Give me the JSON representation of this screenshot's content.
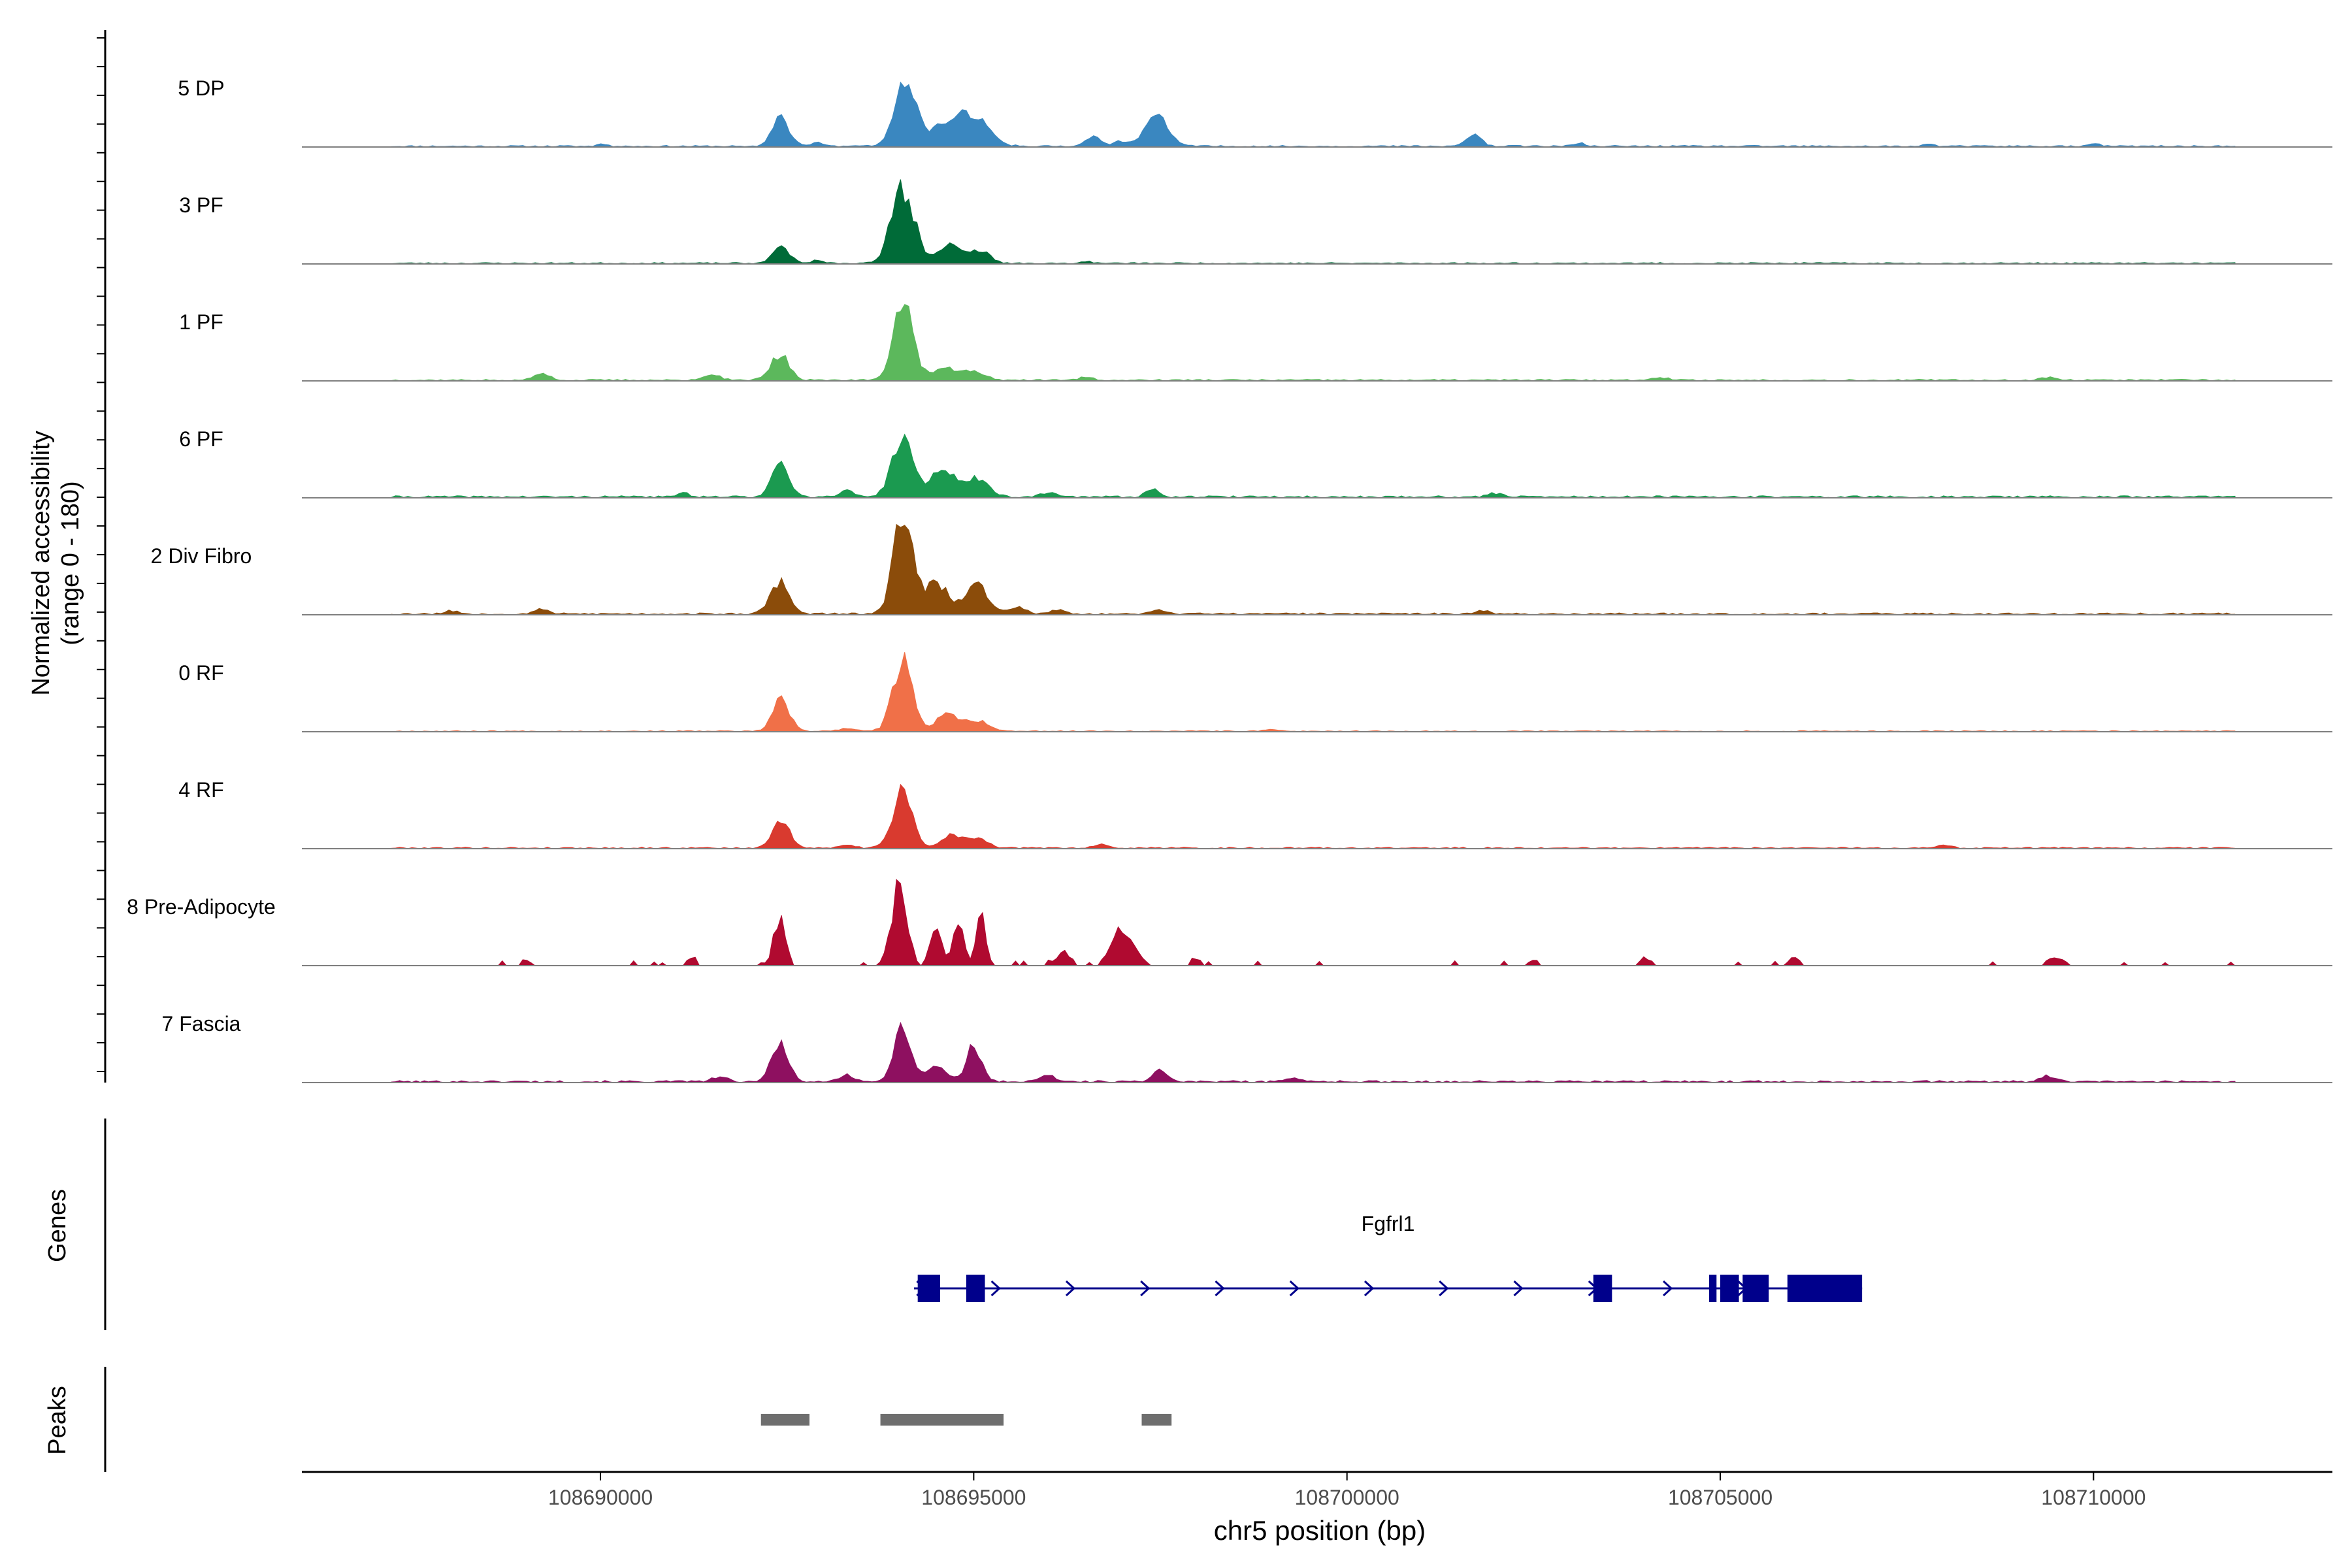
{
  "chart_data": {
    "type": "area",
    "title": "",
    "xlabel": "chr5 position (bp)",
    "ylabel": "Normalized accessibility",
    "ylabel_range": "(range 0 - 180)",
    "ylim": [
      0,
      180
    ],
    "xlim": [
      108686000,
      108713200
    ],
    "x_ticks": [
      108690000,
      108695000,
      108700000,
      108705000,
      108710000
    ],
    "x_tick_labels": [
      "108690000",
      "108695000",
      "108700000",
      "108705000",
      "108710000"
    ],
    "coverage_start": 108687200,
    "coverage_end": 108711900,
    "tracks": [
      {
        "name": "5 DP",
        "color": "#3a87c0",
        "peaks": [
          [
            108692420,
            45,
            110
          ],
          [
            108694100,
            95,
            150
          ],
          [
            108694600,
            35,
            130
          ],
          [
            108695050,
            38,
            180
          ],
          [
            108694850,
            28,
            100
          ],
          [
            108696600,
            16,
            90
          ],
          [
            108697450,
            45,
            160
          ],
          [
            108696950,
            8,
            80
          ],
          [
            108701700,
            16,
            110
          ],
          [
            108692900,
            6,
            80
          ],
          [
            108690000,
            4,
            60
          ],
          [
            108703100,
            5,
            70
          ],
          [
            108707800,
            4,
            70
          ],
          [
            108710000,
            4,
            70
          ]
        ],
        "noise": 2.5,
        "seed": 11
      },
      {
        "name": "3 PF",
        "color": "#006b38",
        "peaks": [
          [
            108692420,
            26,
            110
          ],
          [
            108694050,
            115,
            150
          ],
          [
            108694650,
            30,
            140
          ],
          [
            108695050,
            20,
            150
          ],
          [
            108692900,
            4,
            80
          ],
          [
            108696500,
            3,
            80
          ]
        ],
        "noise": 2.2,
        "seed": 23
      },
      {
        "name": "1 PF",
        "color": "#5cb85c",
        "peaks": [
          [
            108692400,
            40,
            120
          ],
          [
            108694050,
            120,
            130
          ],
          [
            108694600,
            20,
            160
          ],
          [
            108695000,
            15,
            130
          ],
          [
            108689200,
            10,
            110
          ],
          [
            108691500,
            8,
            100
          ],
          [
            108696500,
            5,
            90
          ],
          [
            108704200,
            5,
            90
          ],
          [
            108709400,
            5,
            90
          ]
        ],
        "noise": 2.5,
        "seed": 37
      },
      {
        "name": "6 PF",
        "color": "#1b9a50",
        "peaks": [
          [
            108692420,
            55,
            110
          ],
          [
            108694050,
            95,
            140
          ],
          [
            108694600,
            40,
            170
          ],
          [
            108695050,
            26,
            150
          ],
          [
            108697400,
            12,
            90
          ],
          [
            108693300,
            10,
            90
          ],
          [
            108691100,
            7,
            90
          ],
          [
            108696000,
            6,
            100
          ],
          [
            108702000,
            6,
            100
          ]
        ],
        "noise": 3.2,
        "seed": 41
      },
      {
        "name": "2 Div Fibro",
        "color": "#8b4c0a",
        "peaks": [
          [
            108692400,
            50,
            120
          ],
          [
            108694050,
            140,
            130
          ],
          [
            108694500,
            45,
            170
          ],
          [
            108695050,
            42,
            150
          ],
          [
            108695600,
            10,
            100
          ],
          [
            108696100,
            6,
            100
          ],
          [
            108689200,
            8,
            90
          ],
          [
            108688000,
            5,
            90
          ],
          [
            108697500,
            6,
            100
          ],
          [
            108701800,
            5,
            100
          ]
        ],
        "noise": 3.0,
        "seed": 53
      },
      {
        "name": "0 RF",
        "color": "#f07048",
        "peaks": [
          [
            108692420,
            50,
            110
          ],
          [
            108694050,
            105,
            130
          ],
          [
            108694650,
            25,
            150
          ],
          [
            108695050,
            15,
            150
          ],
          [
            108693300,
            5,
            100
          ],
          [
            108699000,
            3,
            100
          ]
        ],
        "noise": 1.8,
        "seed": 67
      },
      {
        "name": "4 RF",
        "color": "#d93a2f",
        "peaks": [
          [
            108692420,
            45,
            110
          ],
          [
            108694050,
            85,
            130
          ],
          [
            108694700,
            20,
            130
          ],
          [
            108695050,
            15,
            130
          ],
          [
            108696700,
            6,
            100
          ],
          [
            108693300,
            5,
            100
          ],
          [
            108708000,
            4,
            100
          ]
        ],
        "noise": 2.3,
        "seed": 79
      },
      {
        "name": "8 Pre-Adipocyte",
        "color": "#b00a30",
        "peaks": [
          [
            108692400,
            70,
            80
          ],
          [
            108694000,
            120,
            100
          ],
          [
            108694500,
            55,
            80
          ],
          [
            108694800,
            72,
            70
          ],
          [
            108695100,
            80,
            60
          ],
          [
            108697000,
            55,
            150
          ],
          [
            108696200,
            20,
            100
          ],
          [
            108691200,
            12,
            60
          ],
          [
            108689000,
            10,
            60
          ],
          [
            108698000,
            12,
            60
          ],
          [
            108709500,
            12,
            120
          ],
          [
            108706000,
            12,
            80
          ],
          [
            108704000,
            12,
            80
          ],
          [
            108702500,
            10,
            60
          ]
        ],
        "noise": 6.0,
        "seed": 97,
        "sparse": true
      },
      {
        "name": "7 Fascia",
        "color": "#8e1060",
        "peaks": [
          [
            108692400,
            60,
            110
          ],
          [
            108694050,
            85,
            110
          ],
          [
            108694500,
            28,
            120
          ],
          [
            108695000,
            55,
            100
          ],
          [
            108697500,
            16,
            100
          ],
          [
            108696000,
            10,
            100
          ],
          [
            108691600,
            7,
            100
          ],
          [
            108693300,
            10,
            90
          ],
          [
            108699300,
            6,
            100
          ],
          [
            108709400,
            8,
            100
          ]
        ],
        "noise": 3.2,
        "seed": 101
      }
    ],
    "genes": [
      {
        "name": "Fgfrl1",
        "strand": "+",
        "start": 108694200,
        "end": 108706900,
        "exons": [
          [
            108694250,
            108694550
          ],
          [
            108694900,
            108695150
          ],
          [
            108703300,
            108703550
          ],
          [
            108704850,
            108704950
          ],
          [
            108705000,
            108705250
          ],
          [
            108705300,
            108705650
          ],
          [
            108705900,
            108706900
          ]
        ]
      }
    ],
    "peaks_track": [
      [
        108692150,
        108692800
      ],
      [
        108693750,
        108695400
      ],
      [
        108697250,
        108697650
      ]
    ],
    "panel_labels": {
      "genes": "Genes",
      "peaks": "Peaks"
    }
  }
}
